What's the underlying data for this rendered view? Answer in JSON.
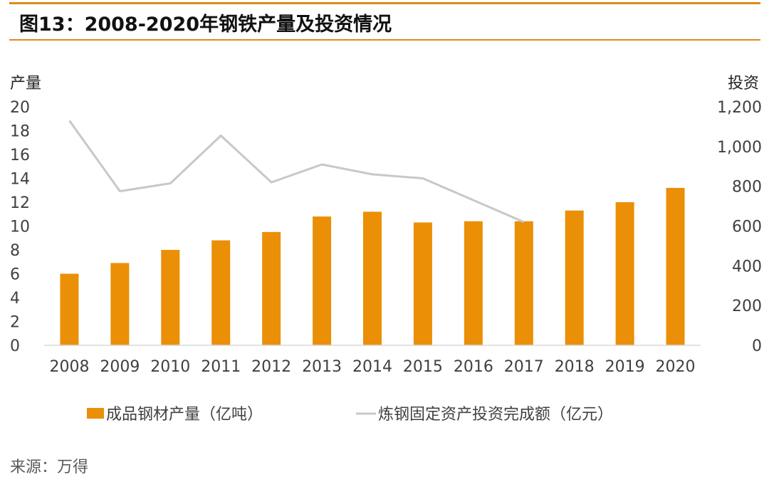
{
  "header": {
    "title": "图13：2008-2020年钢铁产量及投资情况"
  },
  "footer": {
    "source": "来源：万得"
  },
  "colors": {
    "accent": "#e08a1a",
    "bar": "#ea8f06",
    "line": "#c8c8c8"
  },
  "chart_data": {
    "type": "bar",
    "categories": [
      "2008",
      "2009",
      "2010",
      "2011",
      "2012",
      "2013",
      "2014",
      "2015",
      "2016",
      "2017",
      "2018",
      "2019",
      "2020"
    ],
    "y_left": {
      "label": "产量",
      "ylim": [
        0,
        20
      ],
      "ticks": [
        "0",
        "2",
        "4",
        "6",
        "8",
        "10",
        "12",
        "14",
        "16",
        "18",
        "20"
      ]
    },
    "y_right": {
      "label": "投资",
      "ylim": [
        0,
        1200
      ],
      "ticks": [
        "0",
        "200",
        "400",
        "600",
        "800",
        "1,000",
        "1,200"
      ]
    },
    "series": [
      {
        "name": "成品钢材产量（亿吨）",
        "type": "bar",
        "axis": "left",
        "values": [
          6.0,
          6.9,
          8.0,
          8.8,
          9.5,
          10.8,
          11.2,
          10.3,
          10.4,
          10.4,
          11.3,
          12.0,
          13.2
        ]
      },
      {
        "name": "炼钢固定资产投资完成额（亿元）",
        "type": "line",
        "axis": "right",
        "values": [
          1130,
          775,
          815,
          1055,
          820,
          910,
          860,
          840,
          null,
          620,
          null,
          null,
          null
        ]
      }
    ],
    "legend_position": "bottom",
    "grid": false
  }
}
